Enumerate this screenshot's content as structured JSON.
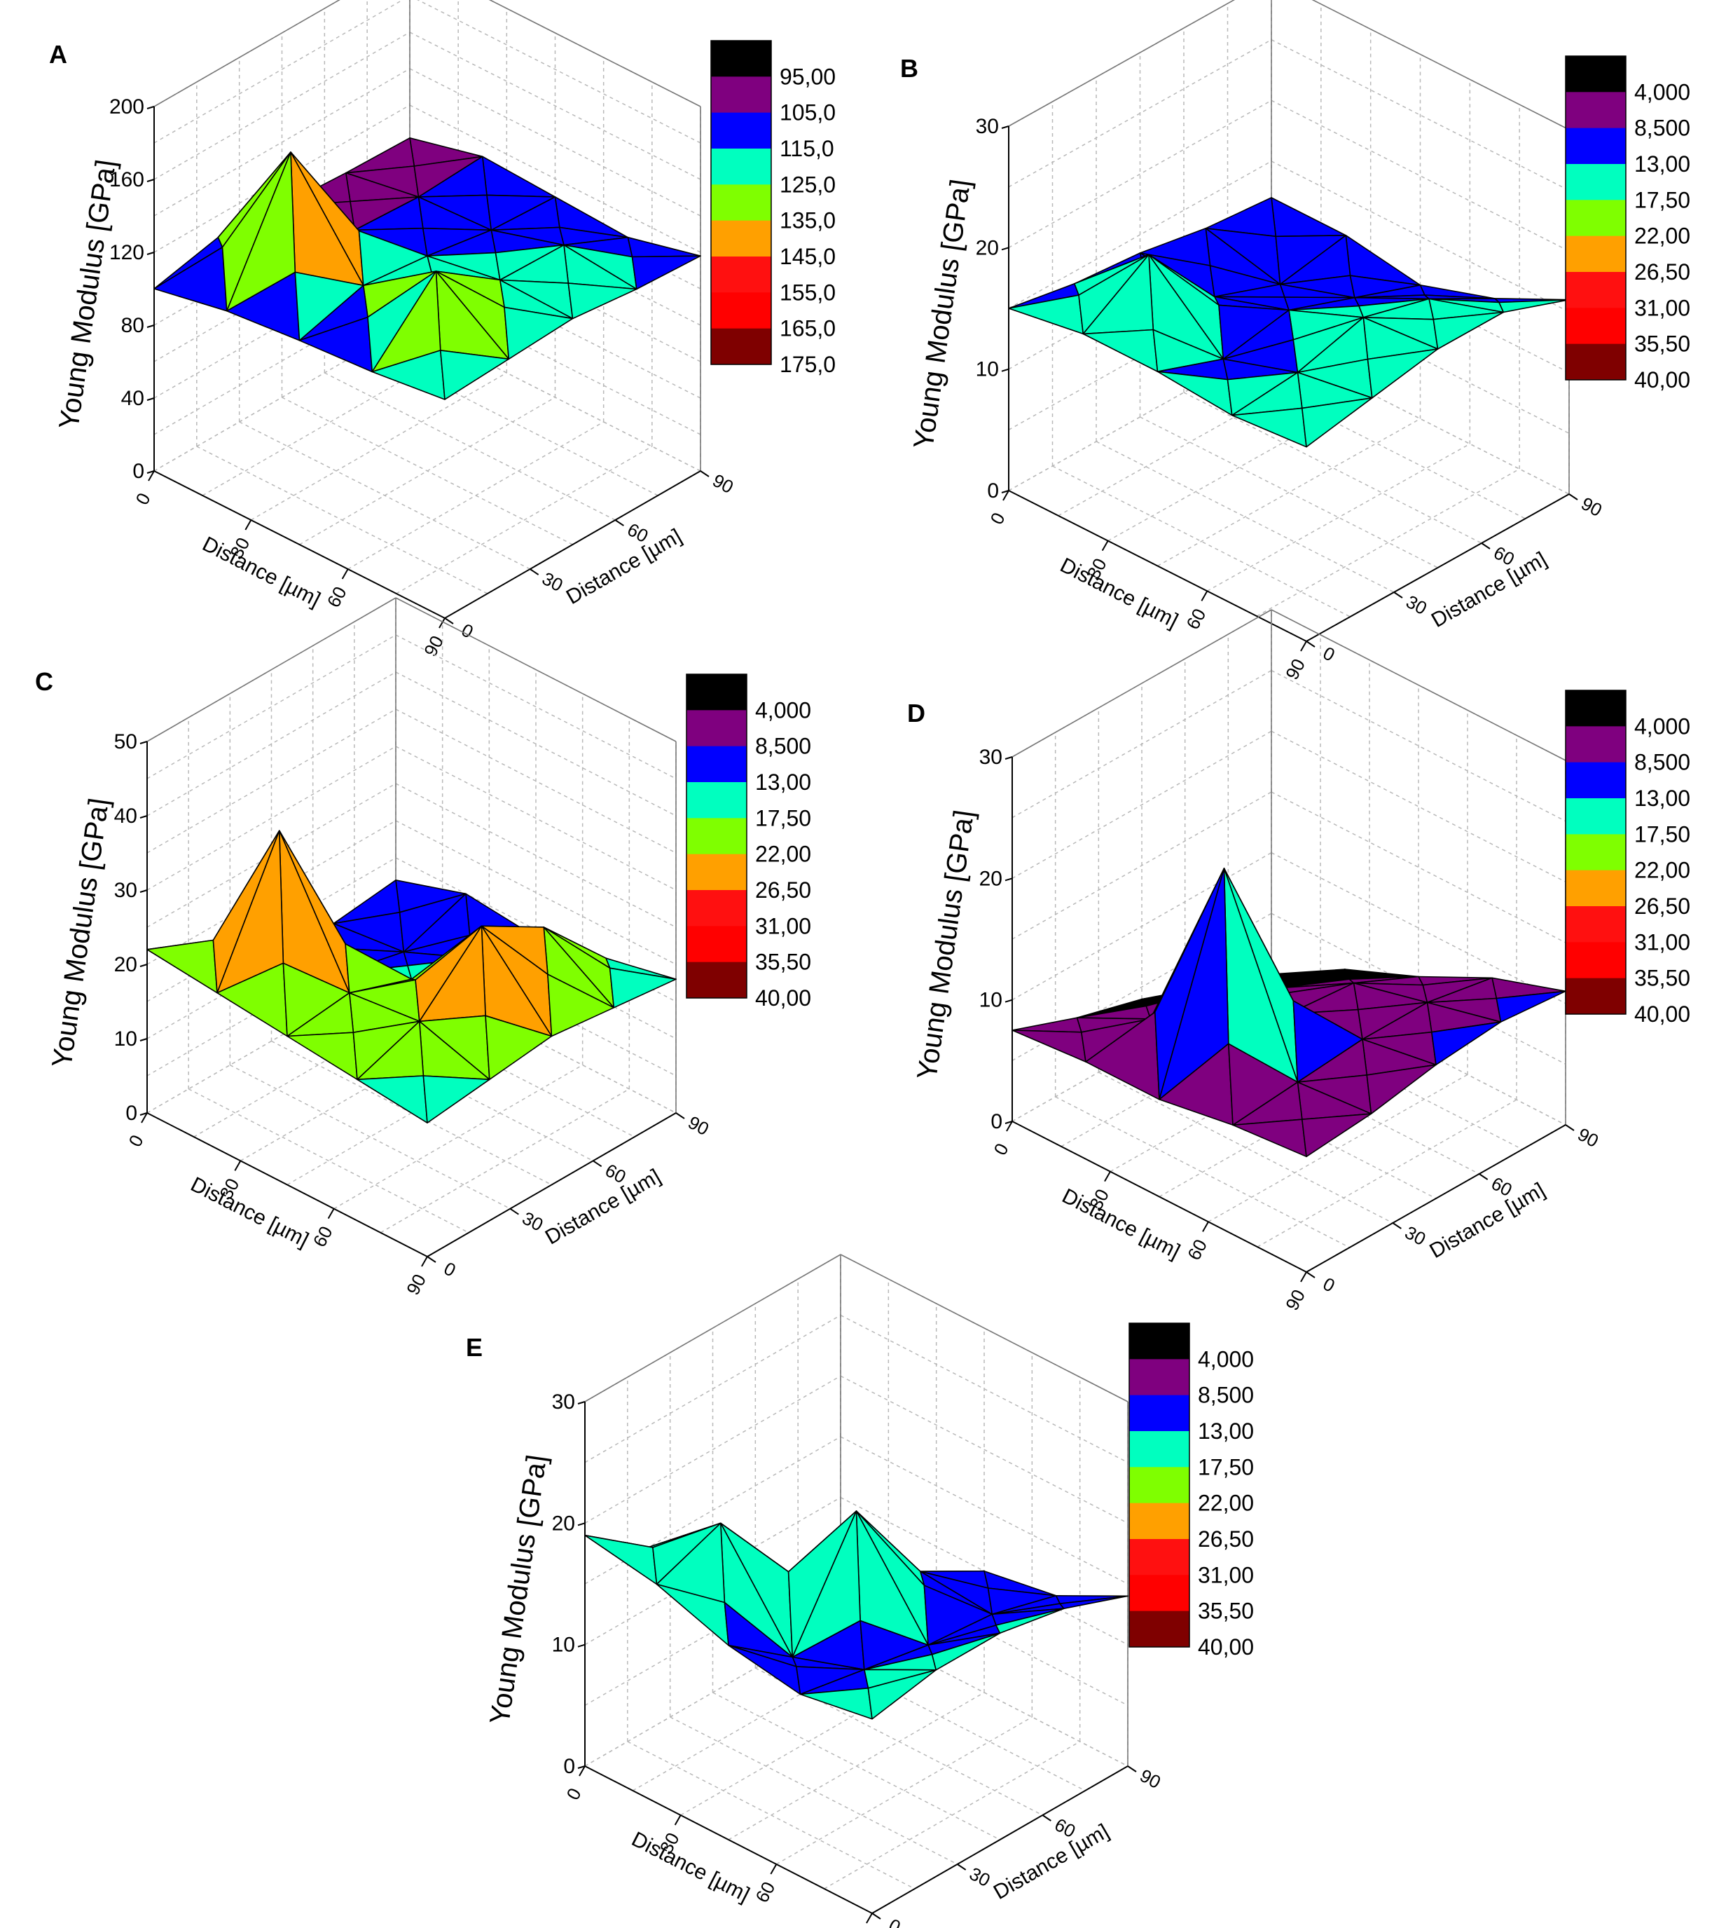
{
  "chart_data": [
    {
      "panel": "A",
      "type": "surface3d",
      "zlabel": "Young Modulus [GPa]",
      "xlabel": "Distance [µm]",
      "ylabel": "Distance [µm]",
      "x_ticks": [
        "0",
        "30",
        "60",
        "90"
      ],
      "y_ticks": [
        "0",
        "30",
        "60",
        "90"
      ],
      "z_ticks": [
        "0",
        "40",
        "80",
        "120",
        "160",
        "200"
      ],
      "zlim": [
        0,
        200
      ],
      "colorbar": {
        "levels": [
          "95,00",
          "105,0",
          "115,0",
          "125,0",
          "135,0",
          "145,0",
          "155,0",
          "165,0",
          "175,0"
        ],
        "colors": [
          "#000000",
          "#7f007f",
          "#0000ff",
          "#00ffbf",
          "#7fff00",
          "#ffa000",
          "#ff1010",
          "#ff0000",
          "#7f0000"
        ]
      },
      "grid_x": [
        0,
        22.5,
        45,
        67.5,
        90
      ],
      "grid_y": [
        0,
        22.5,
        45,
        67.5,
        90
      ],
      "z": [
        [
          100,
          108,
          105,
          103,
          102
        ],
        [
          108,
          175,
          112,
          110,
          112
        ],
        [
          112,
          122,
          118,
          112,
          110
        ],
        [
          115,
          150,
          125,
          124,
          108
        ],
        [
          120,
          122,
          124,
          120,
          118
        ]
      ]
    },
    {
      "panel": "B",
      "type": "surface3d",
      "zlabel": "Young Modulus [GPa]",
      "xlabel": "Distance [µm]",
      "ylabel": "Distance [µm]",
      "x_ticks": [
        "0",
        "30",
        "60",
        "90"
      ],
      "y_ticks": [
        "0",
        "30",
        "60",
        "90"
      ],
      "z_ticks": [
        "0",
        "10",
        "20",
        "30"
      ],
      "zlim": [
        0,
        30
      ],
      "colorbar": {
        "levels": [
          "4,000",
          "8,500",
          "13,00",
          "17,50",
          "22,00",
          "26,50",
          "31,00",
          "35,50",
          "40,00"
        ],
        "colors": [
          "#000000",
          "#7f007f",
          "#0000ff",
          "#00ffbf",
          "#7fff00",
          "#ffa000",
          "#ff1010",
          "#ff0000",
          "#7f0000"
        ]
      },
      "grid_x": [
        0,
        22.5,
        45,
        67.5,
        90
      ],
      "grid_y": [
        0,
        22.5,
        45,
        67.5,
        90
      ],
      "z": [
        [
          15,
          14,
          13.5,
          12.5,
          12
        ],
        [
          16,
          19.5,
          13,
          11,
          12
        ],
        [
          16,
          14,
          15,
          13,
          11
        ],
        [
          15.5,
          16,
          17.5,
          16,
          13
        ],
        [
          16,
          17,
          18,
          18,
          16
        ]
      ]
    },
    {
      "panel": "C",
      "type": "surface3d",
      "zlabel": "Young Modulus [GPa]",
      "xlabel": "Distance [µm]",
      "ylabel": "Distance [µm]",
      "x_ticks": [
        "0",
        "30",
        "60",
        "90"
      ],
      "y_ticks": [
        "0",
        "30",
        "60",
        "90"
      ],
      "z_ticks": [
        "0",
        "10",
        "20",
        "30",
        "40",
        "50"
      ],
      "zlim": [
        0,
        50
      ],
      "colorbar": {
        "levels": [
          "4,000",
          "8,500",
          "13,00",
          "17,50",
          "22,00",
          "26,50",
          "31,00",
          "35,50",
          "40,00"
        ],
        "colors": [
          "#000000",
          "#7f007f",
          "#0000ff",
          "#00ffbf",
          "#7fff00",
          "#ffa000",
          "#ff1010",
          "#ff0000",
          "#7f0000"
        ]
      },
      "grid_x": [
        0,
        22.5,
        45,
        67.5,
        90
      ],
      "grid_y": [
        0,
        22.5,
        45,
        67.5,
        90
      ],
      "z": [
        [
          22,
          12,
          13,
          11,
          12
        ],
        [
          21,
          38,
          14,
          12,
          15
        ],
        [
          20,
          21,
          18,
          16,
          14
        ],
        [
          19,
          22,
          30,
          25,
          16
        ],
        [
          18,
          19,
          20,
          19,
          18
        ]
      ]
    },
    {
      "panel": "D",
      "type": "surface3d",
      "zlabel": "Young Modulus [GPa]",
      "xlabel": "Distance [µm]",
      "ylabel": "Distance [µm]",
      "x_ticks": [
        "0",
        "30",
        "60",
        "90"
      ],
      "y_ticks": [
        "0",
        "30",
        "60",
        "90"
      ],
      "z_ticks": [
        "0",
        "10",
        "20",
        "30"
      ],
      "zlim": [
        0,
        30
      ],
      "colorbar": {
        "levels": [
          "4,000",
          "8,500",
          "13,00",
          "17,50",
          "22,00",
          "26,50",
          "31,00",
          "35,50",
          "40,00"
        ],
        "colors": [
          "#000000",
          "#7f007f",
          "#0000ff",
          "#00ffbf",
          "#7fff00",
          "#ffa000",
          "#ff1010",
          "#ff0000",
          "#7f0000"
        ]
      },
      "grid_x": [
        0,
        22.5,
        45,
        67.5,
        90
      ],
      "grid_y": [
        0,
        22.5,
        45,
        67.5,
        90
      ],
      "z": [
        [
          7.5,
          5.5,
          4,
          2,
          0
        ],
        [
          8,
          8.5,
          8,
          5,
          3.5
        ],
        [
          8,
          24,
          9,
          8.5,
          6
        ],
        [
          9,
          9.5,
          10,
          10,
          9
        ],
        [
          9.5,
          10,
          11,
          11.5,
          11
        ]
      ]
    },
    {
      "panel": "E",
      "type": "surface3d",
      "zlabel": "Young Modulus [GPa]",
      "xlabel": "Distance [µm]",
      "ylabel": "Distance [µm]",
      "x_ticks": [
        "0",
        "30",
        "60",
        "90"
      ],
      "y_ticks": [
        "0",
        "30",
        "60",
        "90"
      ],
      "z_ticks": [
        "0",
        "10",
        "20",
        "30"
      ],
      "zlim": [
        0,
        30
      ],
      "colorbar": {
        "levels": [
          "4,000",
          "8,500",
          "13,00",
          "17,50",
          "22,00",
          "26,50",
          "31,00",
          "35,50",
          "40,00"
        ],
        "colors": [
          "#000000",
          "#7f007f",
          "#0000ff",
          "#00ffbf",
          "#7fff00",
          "#ffa000",
          "#ff1010",
          "#ff0000",
          "#7f0000"
        ]
      },
      "grid_x": [
        0,
        22.5,
        45,
        67.5,
        90
      ],
      "grid_y": [
        0,
        22.5,
        45,
        67.5,
        90
      ],
      "z": [
        [
          19,
          15,
          9,
          6,
          3
        ],
        [
          18,
          20,
          11,
          7,
          6
        ],
        [
          16,
          12,
          21,
          13,
          10
        ],
        [
          15,
          14,
          13,
          12.5,
          11
        ],
        [
          16,
          17,
          17,
          16,
          14
        ]
      ]
    }
  ]
}
